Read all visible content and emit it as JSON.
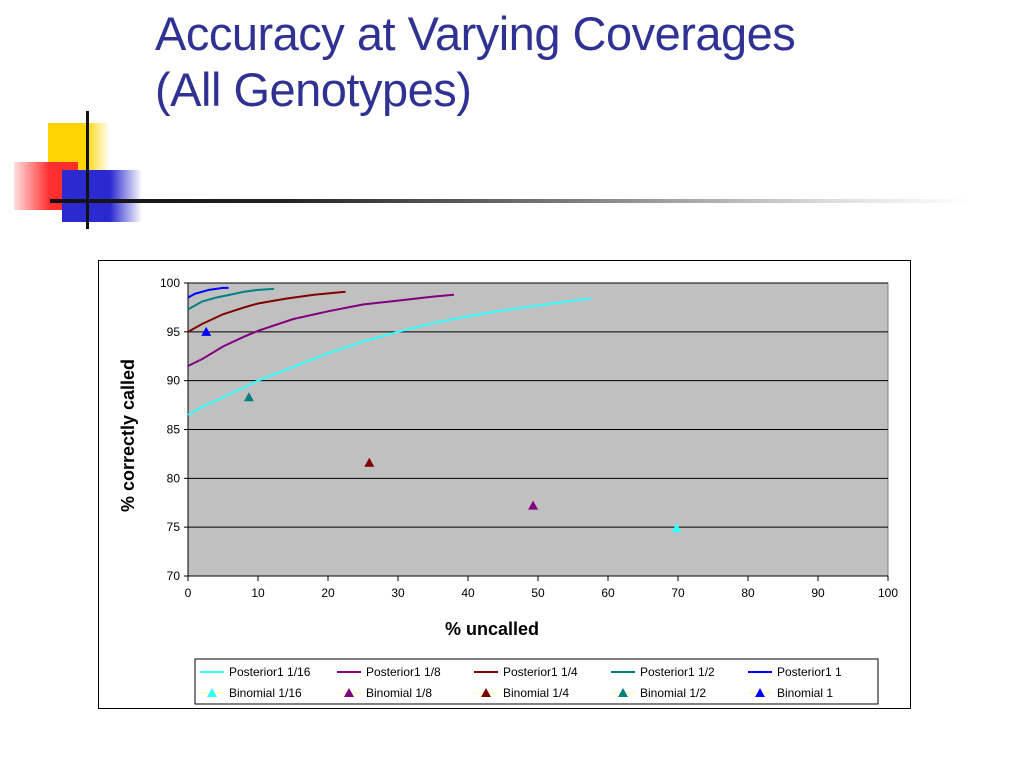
{
  "slide": {
    "title_line1": "Accuracy at Varying Coverages",
    "title_line2": "(All Genotypes)"
  },
  "colors": {
    "title": "#2f3293",
    "plot_area": "#c0c0c0",
    "cyan": "#33ffff",
    "purple": "#800080",
    "darkred": "#800000",
    "teal": "#008080",
    "blue": "#0000ff"
  },
  "chart_data": {
    "type": "scatter",
    "title": "",
    "xlabel": "% uncalled",
    "ylabel": "% correctly called",
    "xlim": [
      0,
      100
    ],
    "ylim": [
      70,
      100
    ],
    "xticks": [
      0,
      10,
      20,
      30,
      40,
      50,
      60,
      70,
      80,
      90,
      100
    ],
    "yticks": [
      70,
      75,
      80,
      85,
      90,
      95,
      100
    ],
    "grid": "horizontal",
    "legend_position": "bottom",
    "series": [
      {
        "name": "Posterior1 1/16",
        "kind": "line",
        "color": "#33ffff",
        "x": [
          0,
          2,
          5,
          8,
          10,
          15,
          20,
          25,
          30,
          35,
          40,
          45,
          50,
          55,
          57.5
        ],
        "y": [
          86.5,
          87.3,
          88.3,
          89.3,
          90.0,
          91.4,
          92.8,
          94.0,
          95.0,
          95.9,
          96.6,
          97.2,
          97.7,
          98.2,
          98.4
        ]
      },
      {
        "name": "Posterior1 1/8",
        "kind": "line",
        "color": "#800080",
        "x": [
          0,
          2,
          5,
          8,
          10,
          15,
          20,
          25,
          30,
          35,
          38
        ],
        "y": [
          91.5,
          92.2,
          93.5,
          94.5,
          95.1,
          96.3,
          97.1,
          97.8,
          98.2,
          98.6,
          98.8
        ]
      },
      {
        "name": "Posterior1 1/4",
        "kind": "line",
        "color": "#800000",
        "x": [
          0,
          2,
          5,
          8,
          10,
          14,
          18,
          22.5
        ],
        "y": [
          95.0,
          95.8,
          96.8,
          97.5,
          97.9,
          98.4,
          98.8,
          99.1
        ]
      },
      {
        "name": "Posterior1 1/2",
        "kind": "line",
        "color": "#008080",
        "x": [
          0,
          1,
          2,
          4,
          6,
          8,
          10,
          12.3
        ],
        "y": [
          97.3,
          97.7,
          98.1,
          98.5,
          98.8,
          99.1,
          99.3,
          99.4
        ]
      },
      {
        "name": "Posterior1 1",
        "kind": "line",
        "color": "#0000ff",
        "x": [
          0,
          1,
          2,
          3,
          4,
          5,
          5.8
        ],
        "y": [
          98.5,
          98.9,
          99.1,
          99.3,
          99.4,
          99.5,
          99.5
        ]
      },
      {
        "name": "Binomial 1/16",
        "kind": "marker",
        "color": "#33ffff",
        "x": [
          69.8
        ],
        "y": [
          74.9
        ]
      },
      {
        "name": "Binomial 1/8",
        "kind": "marker",
        "color": "#800080",
        "x": [
          49.3
        ],
        "y": [
          77.2
        ]
      },
      {
        "name": "Binomial 1/4",
        "kind": "marker",
        "color": "#800000",
        "x": [
          25.9
        ],
        "y": [
          81.6
        ]
      },
      {
        "name": "Binomial 1/2",
        "kind": "marker",
        "color": "#008080",
        "x": [
          8.7
        ],
        "y": [
          88.3
        ]
      },
      {
        "name": "Binomial 1",
        "kind": "marker",
        "color": "#0000ff",
        "x": [
          2.6
        ],
        "y": [
          95.0
        ]
      }
    ]
  }
}
